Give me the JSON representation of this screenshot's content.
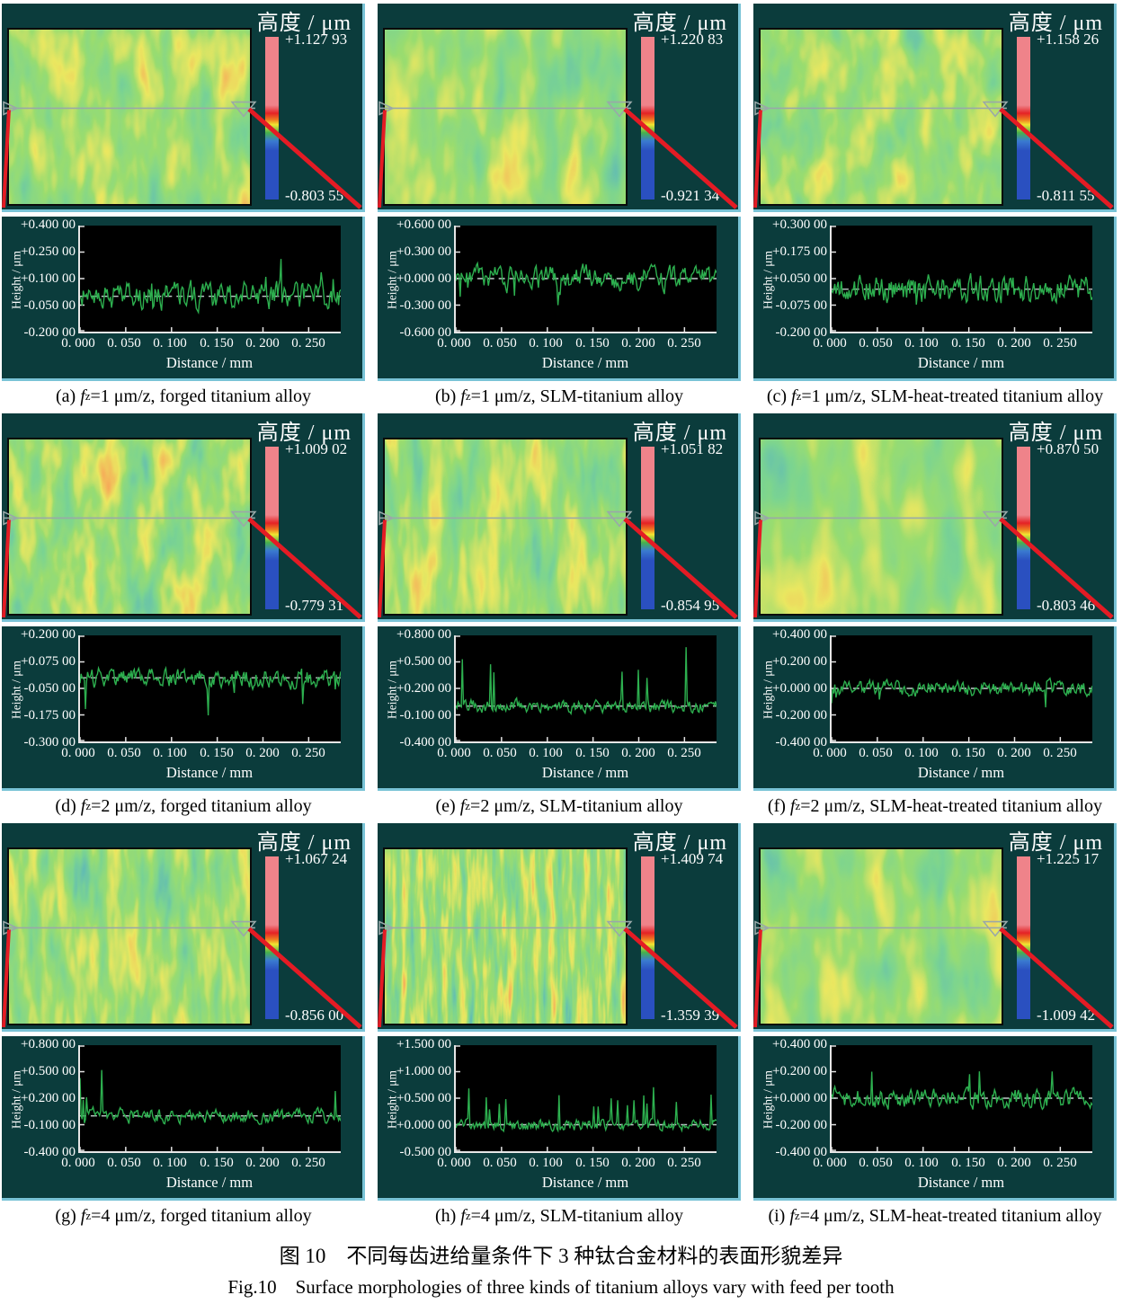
{
  "figure": {
    "caption_zh": "图 10    不同每齿进给量条件下 3 种钛合金材料的表面形貌差异",
    "caption_en": "Fig.10    Surface morphologies of three kinds of titanium alloys vary with feed per tooth",
    "feed_symbol": {
      "base": "f",
      "sub": "z"
    }
  },
  "shared": {
    "colorbar_title": "高度 / μm",
    "ylabel": "Height / μm",
    "xlabel": "Distance / mm",
    "x_ticks": [
      "0. 000",
      "0. 050",
      "0. 100",
      "0. 150",
      "0. 200",
      "0. 250"
    ],
    "colors": {
      "panel_background": "#0b3c3c",
      "panel_edge_highlight": "#79c3d6",
      "red_indicator_line": "#e41b24",
      "trace_green": "#2db04f",
      "plot_background": "#000000",
      "colorbar_top": "#ef838a",
      "colorbar_bottom": "#2a50c0",
      "axis_text": "#ffffff"
    }
  },
  "panels": [
    {
      "id": "a",
      "caption_label": "(a) ",
      "caption_text": "=1 μm/z, forged titanium alloy",
      "colorbar_max": "+1.127 93",
      "colorbar_min": "-0.803 55",
      "y_ticks": [
        "+0.400 00",
        "+0.250 00",
        "+0.100 00",
        "-0.050 00",
        "-0.200 00"
      ],
      "ylim": [
        -0.2,
        0.4
      ]
    },
    {
      "id": "b",
      "caption_label": "(b) ",
      "caption_text": "=1 μm/z, SLM-titanium alloy",
      "colorbar_max": "+1.220 83",
      "colorbar_min": "-0.921 34",
      "y_ticks": [
        "+0.600 00",
        "+0.300 00",
        "+0.000 00",
        "-0.300 00",
        "-0.600 00"
      ],
      "ylim": [
        -0.6,
        0.6
      ]
    },
    {
      "id": "c",
      "caption_label": "(c) ",
      "caption_text": "=1 μm/z, SLM-heat-treated titanium alloy",
      "colorbar_max": "+1.158 26",
      "colorbar_min": "-0.811 55",
      "y_ticks": [
        "+0.300 00",
        "+0.175 00",
        "+0.050 00",
        "-0.075 00",
        "-0.200 00"
      ],
      "ylim": [
        -0.2,
        0.3
      ]
    },
    {
      "id": "d",
      "caption_label": "(d) ",
      "caption_text": "=2 μm/z, forged titanium alloy",
      "colorbar_max": "+1.009 02",
      "colorbar_min": "-0.779 31",
      "y_ticks": [
        "+0.200 00",
        "+0.075 00",
        "-0.050 00",
        "-0.175 00",
        "-0.300 00"
      ],
      "ylim": [
        -0.3,
        0.2
      ]
    },
    {
      "id": "e",
      "caption_label": "(e) ",
      "caption_text": "=2 μm/z, SLM-titanium alloy",
      "colorbar_max": "+1.051 82",
      "colorbar_min": "-0.854 95",
      "y_ticks": [
        "+0.800 00",
        "+0.500 00",
        "+0.200 00",
        "-0.100 00",
        "-0.400 00"
      ],
      "ylim": [
        -0.4,
        0.8
      ]
    },
    {
      "id": "f",
      "caption_label": "(f) ",
      "caption_text": "=2 μm/z, SLM-heat-treated titanium alloy",
      "colorbar_max": "+0.870 50",
      "colorbar_min": "-0.803 46",
      "y_ticks": [
        "+0.400 00",
        "+0.200 00",
        "+0.000 00",
        "-0.200 00",
        "-0.400 00"
      ],
      "ylim": [
        -0.4,
        0.4
      ]
    },
    {
      "id": "g",
      "caption_label": "(g) ",
      "caption_text": "=4 μm/z, forged titanium alloy",
      "colorbar_max": "+1.067 24",
      "colorbar_min": "-0.856 00",
      "y_ticks": [
        "+0.800 00",
        "+0.500 00",
        "+0.200 00",
        "-0.100 00",
        "-0.400 00"
      ],
      "ylim": [
        -0.4,
        0.8
      ]
    },
    {
      "id": "h",
      "caption_label": "(h) ",
      "caption_text": "=4 μm/z, SLM-titanium alloy",
      "colorbar_max": "+1.409 74",
      "colorbar_min": "-1.359 39",
      "y_ticks": [
        "+1.500 00",
        "+1.000 00",
        "+0.500 00",
        "+0.000 00",
        "-0.500 00"
      ],
      "ylim": [
        -0.5,
        1.5
      ]
    },
    {
      "id": "i",
      "caption_label": "(i) ",
      "caption_text": "=4 μm/z, SLM-heat-treated titanium alloy",
      "colorbar_max": "+1.225 17",
      "colorbar_min": "-1.009 42",
      "y_ticks": [
        "+0.400 00",
        "+0.200 00",
        "+0.000 00",
        "-0.200 00",
        "-0.400 00"
      ],
      "ylim": [
        -0.4,
        0.4
      ]
    }
  ],
  "chart_data": [
    {
      "panel": "a",
      "type": "line",
      "xlabel": "Distance / mm",
      "ylabel": "Height / μm",
      "x_ticks": [
        0.0,
        0.05,
        0.1,
        0.15,
        0.2,
        0.25
      ],
      "x_range": [
        0,
        0.285
      ],
      "ylim": [
        -0.2,
        0.4
      ],
      "mean_line": 0,
      "height_max_um": 1.12793,
      "height_min_um": -0.80355
    },
    {
      "panel": "b",
      "type": "line",
      "xlabel": "Distance / mm",
      "ylabel": "Height / μm",
      "x_ticks": [
        0.0,
        0.05,
        0.1,
        0.15,
        0.2,
        0.25
      ],
      "x_range": [
        0,
        0.285
      ],
      "ylim": [
        -0.6,
        0.6
      ],
      "mean_line": 0,
      "height_max_um": 1.22083,
      "height_min_um": -0.92134
    },
    {
      "panel": "c",
      "type": "line",
      "xlabel": "Distance / mm",
      "ylabel": "Height / μm",
      "x_ticks": [
        0.0,
        0.05,
        0.1,
        0.15,
        0.2,
        0.25
      ],
      "x_range": [
        0,
        0.285
      ],
      "ylim": [
        -0.2,
        0.3
      ],
      "mean_line": 0,
      "height_max_um": 1.15826,
      "height_min_um": -0.81155
    },
    {
      "panel": "d",
      "type": "line",
      "xlabel": "Distance / mm",
      "ylabel": "Height / μm",
      "x_ticks": [
        0.0,
        0.05,
        0.1,
        0.15,
        0.2,
        0.25
      ],
      "x_range": [
        0,
        0.285
      ],
      "ylim": [
        -0.3,
        0.2
      ],
      "mean_line": 0,
      "height_max_um": 1.00902,
      "height_min_um": -0.77931
    },
    {
      "panel": "e",
      "type": "line",
      "xlabel": "Distance / mm",
      "ylabel": "Height / μm",
      "x_ticks": [
        0.0,
        0.05,
        0.1,
        0.15,
        0.2,
        0.25
      ],
      "x_range": [
        0,
        0.285
      ],
      "ylim": [
        -0.4,
        0.8
      ],
      "mean_line": 0,
      "height_max_um": 1.05182,
      "height_min_um": -0.85495
    },
    {
      "panel": "f",
      "type": "line",
      "xlabel": "Distance / mm",
      "ylabel": "Height / μm",
      "x_ticks": [
        0.0,
        0.05,
        0.1,
        0.15,
        0.2,
        0.25
      ],
      "x_range": [
        0,
        0.285
      ],
      "ylim": [
        -0.4,
        0.4
      ],
      "mean_line": 0,
      "height_max_um": 0.8705,
      "height_min_um": -0.80346
    },
    {
      "panel": "g",
      "type": "line",
      "xlabel": "Distance / mm",
      "ylabel": "Height / μm",
      "x_ticks": [
        0.0,
        0.05,
        0.1,
        0.15,
        0.2,
        0.25
      ],
      "x_range": [
        0,
        0.285
      ],
      "ylim": [
        -0.4,
        0.8
      ],
      "mean_line": 0,
      "height_max_um": 1.06724,
      "height_min_um": -0.856
    },
    {
      "panel": "h",
      "type": "line",
      "xlabel": "Distance / mm",
      "ylabel": "Height / μm",
      "x_ticks": [
        0.0,
        0.05,
        0.1,
        0.15,
        0.2,
        0.25
      ],
      "x_range": [
        0,
        0.285
      ],
      "ylim": [
        -0.5,
        1.5
      ],
      "mean_line": 0,
      "height_max_um": 1.40974,
      "height_min_um": -1.35939
    },
    {
      "panel": "i",
      "type": "line",
      "xlabel": "Distance / mm",
      "ylabel": "Height / μm",
      "x_ticks": [
        0.0,
        0.05,
        0.1,
        0.15,
        0.2,
        0.25
      ],
      "x_range": [
        0,
        0.285
      ],
      "ylim": [
        -0.4,
        0.4
      ],
      "mean_line": 0,
      "height_max_um": 1.22517,
      "height_min_um": -1.00942
    }
  ]
}
